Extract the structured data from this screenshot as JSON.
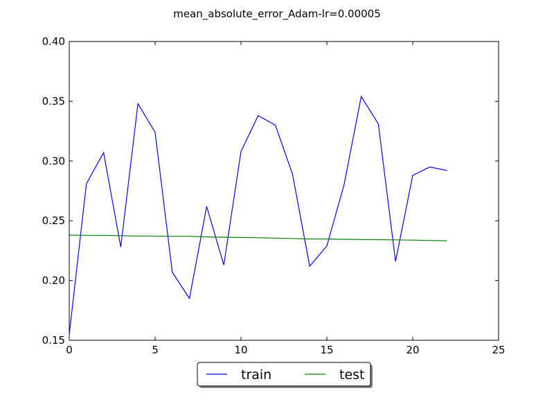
{
  "chart_data": {
    "type": "line",
    "title": "mean_absolute_error_Adam-lr=0.00005",
    "xlabel": "",
    "ylabel": "",
    "xlim": [
      0,
      25
    ],
    "ylim": [
      0.15,
      0.4
    ],
    "x_ticks": [
      0,
      5,
      10,
      15,
      20,
      25
    ],
    "y_ticks": [
      0.15,
      0.2,
      0.25,
      0.3,
      0.35,
      0.4
    ],
    "x_tick_labels": [
      "0",
      "5",
      "10",
      "15",
      "20",
      "25"
    ],
    "y_tick_labels": [
      "0.15",
      "0.20",
      "0.25",
      "0.30",
      "0.35",
      "0.40"
    ],
    "grid": false,
    "legend_position": "bottom-center outside",
    "x": [
      0,
      1,
      2,
      3,
      4,
      5,
      6,
      7,
      8,
      9,
      10,
      11,
      12,
      13,
      14,
      15,
      16,
      17,
      18,
      19,
      20,
      21,
      22
    ],
    "series": [
      {
        "name": "train",
        "color": "#0000ff",
        "values": [
          0.155,
          0.281,
          0.307,
          0.228,
          0.348,
          0.324,
          0.207,
          0.185,
          0.262,
          0.213,
          0.308,
          0.338,
          0.33,
          0.289,
          0.212,
          0.229,
          0.28,
          0.354,
          0.331,
          0.216,
          0.288,
          0.295,
          0.292
        ]
      },
      {
        "name": "test",
        "color": "#008000",
        "values": [
          0.238,
          0.2378,
          0.2378,
          0.2375,
          0.2372,
          0.2372,
          0.237,
          0.237,
          0.2365,
          0.2362,
          0.236,
          0.2358,
          0.2355,
          0.2352,
          0.2348,
          0.2348,
          0.2345,
          0.2343,
          0.2342,
          0.234,
          0.2338,
          0.2335,
          0.2332
        ]
      }
    ]
  }
}
